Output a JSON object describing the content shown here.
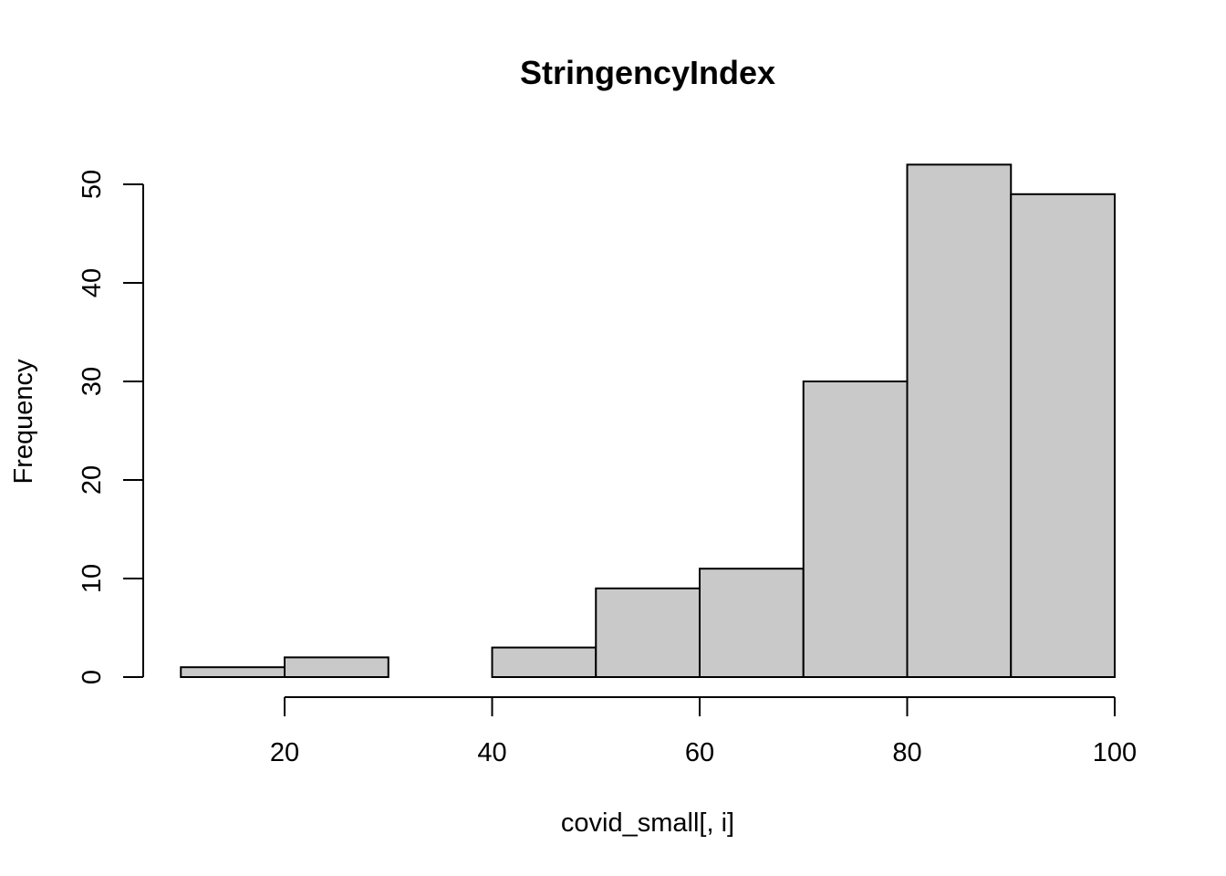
{
  "chart_data": {
    "type": "bar",
    "subtype": "histogram",
    "title": "StringencyIndex",
    "xlabel": "covid_small[, i]",
    "ylabel": "Frequency",
    "bins": [
      {
        "from": 10,
        "to": 20,
        "count": 1
      },
      {
        "from": 20,
        "to": 30,
        "count": 2
      },
      {
        "from": 30,
        "to": 40,
        "count": 0
      },
      {
        "from": 40,
        "to": 50,
        "count": 3
      },
      {
        "from": 50,
        "to": 60,
        "count": 9
      },
      {
        "from": 60,
        "to": 70,
        "count": 11
      },
      {
        "from": 70,
        "to": 80,
        "count": 30
      },
      {
        "from": 80,
        "to": 90,
        "count": 52
      },
      {
        "from": 90,
        "to": 100,
        "count": 49
      }
    ],
    "xlim": [
      10,
      100
    ],
    "ylim": [
      0,
      52
    ],
    "x_ticks": [
      20,
      40,
      60,
      80,
      100
    ],
    "y_ticks": [
      0,
      10,
      20,
      30,
      40,
      50
    ],
    "grid": false,
    "legend": "none",
    "colors": {
      "bar_fill": "#c9c9c9",
      "bar_stroke": "#000000"
    }
  }
}
